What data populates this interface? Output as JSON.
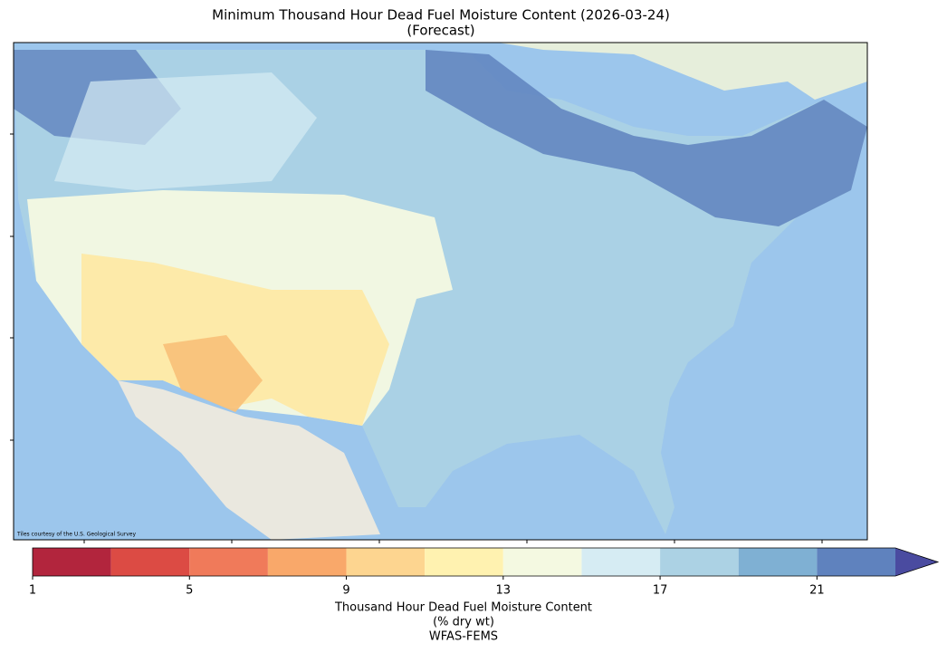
{
  "title": "Minimum Thousand Hour Dead Fuel Moisture Content (2026-03-24)",
  "subtitle": "(Forecast)",
  "attribution": "Tiles courtesy of the U.S. Geological Survey",
  "colorbar": {
    "bounds": [
      1,
      3,
      5,
      7,
      9,
      11,
      13,
      15,
      17,
      19,
      21,
      23
    ],
    "colors": [
      "#b2253d",
      "#dc4b44",
      "#f07a5a",
      "#f9a86a",
      "#fdd590",
      "#fff2b0",
      "#f4f9e1",
      "#d6ecf3",
      "#acd2e4",
      "#7fb0d3",
      "#5f82be"
    ],
    "extend_color": "#4a4ba0",
    "ticks": [
      1,
      5,
      9,
      13,
      17,
      21
    ],
    "label": "Thousand Hour Dead Fuel Moisture Content",
    "units": "(% dry wt)",
    "source": "WFAS-FEMS"
  }
}
